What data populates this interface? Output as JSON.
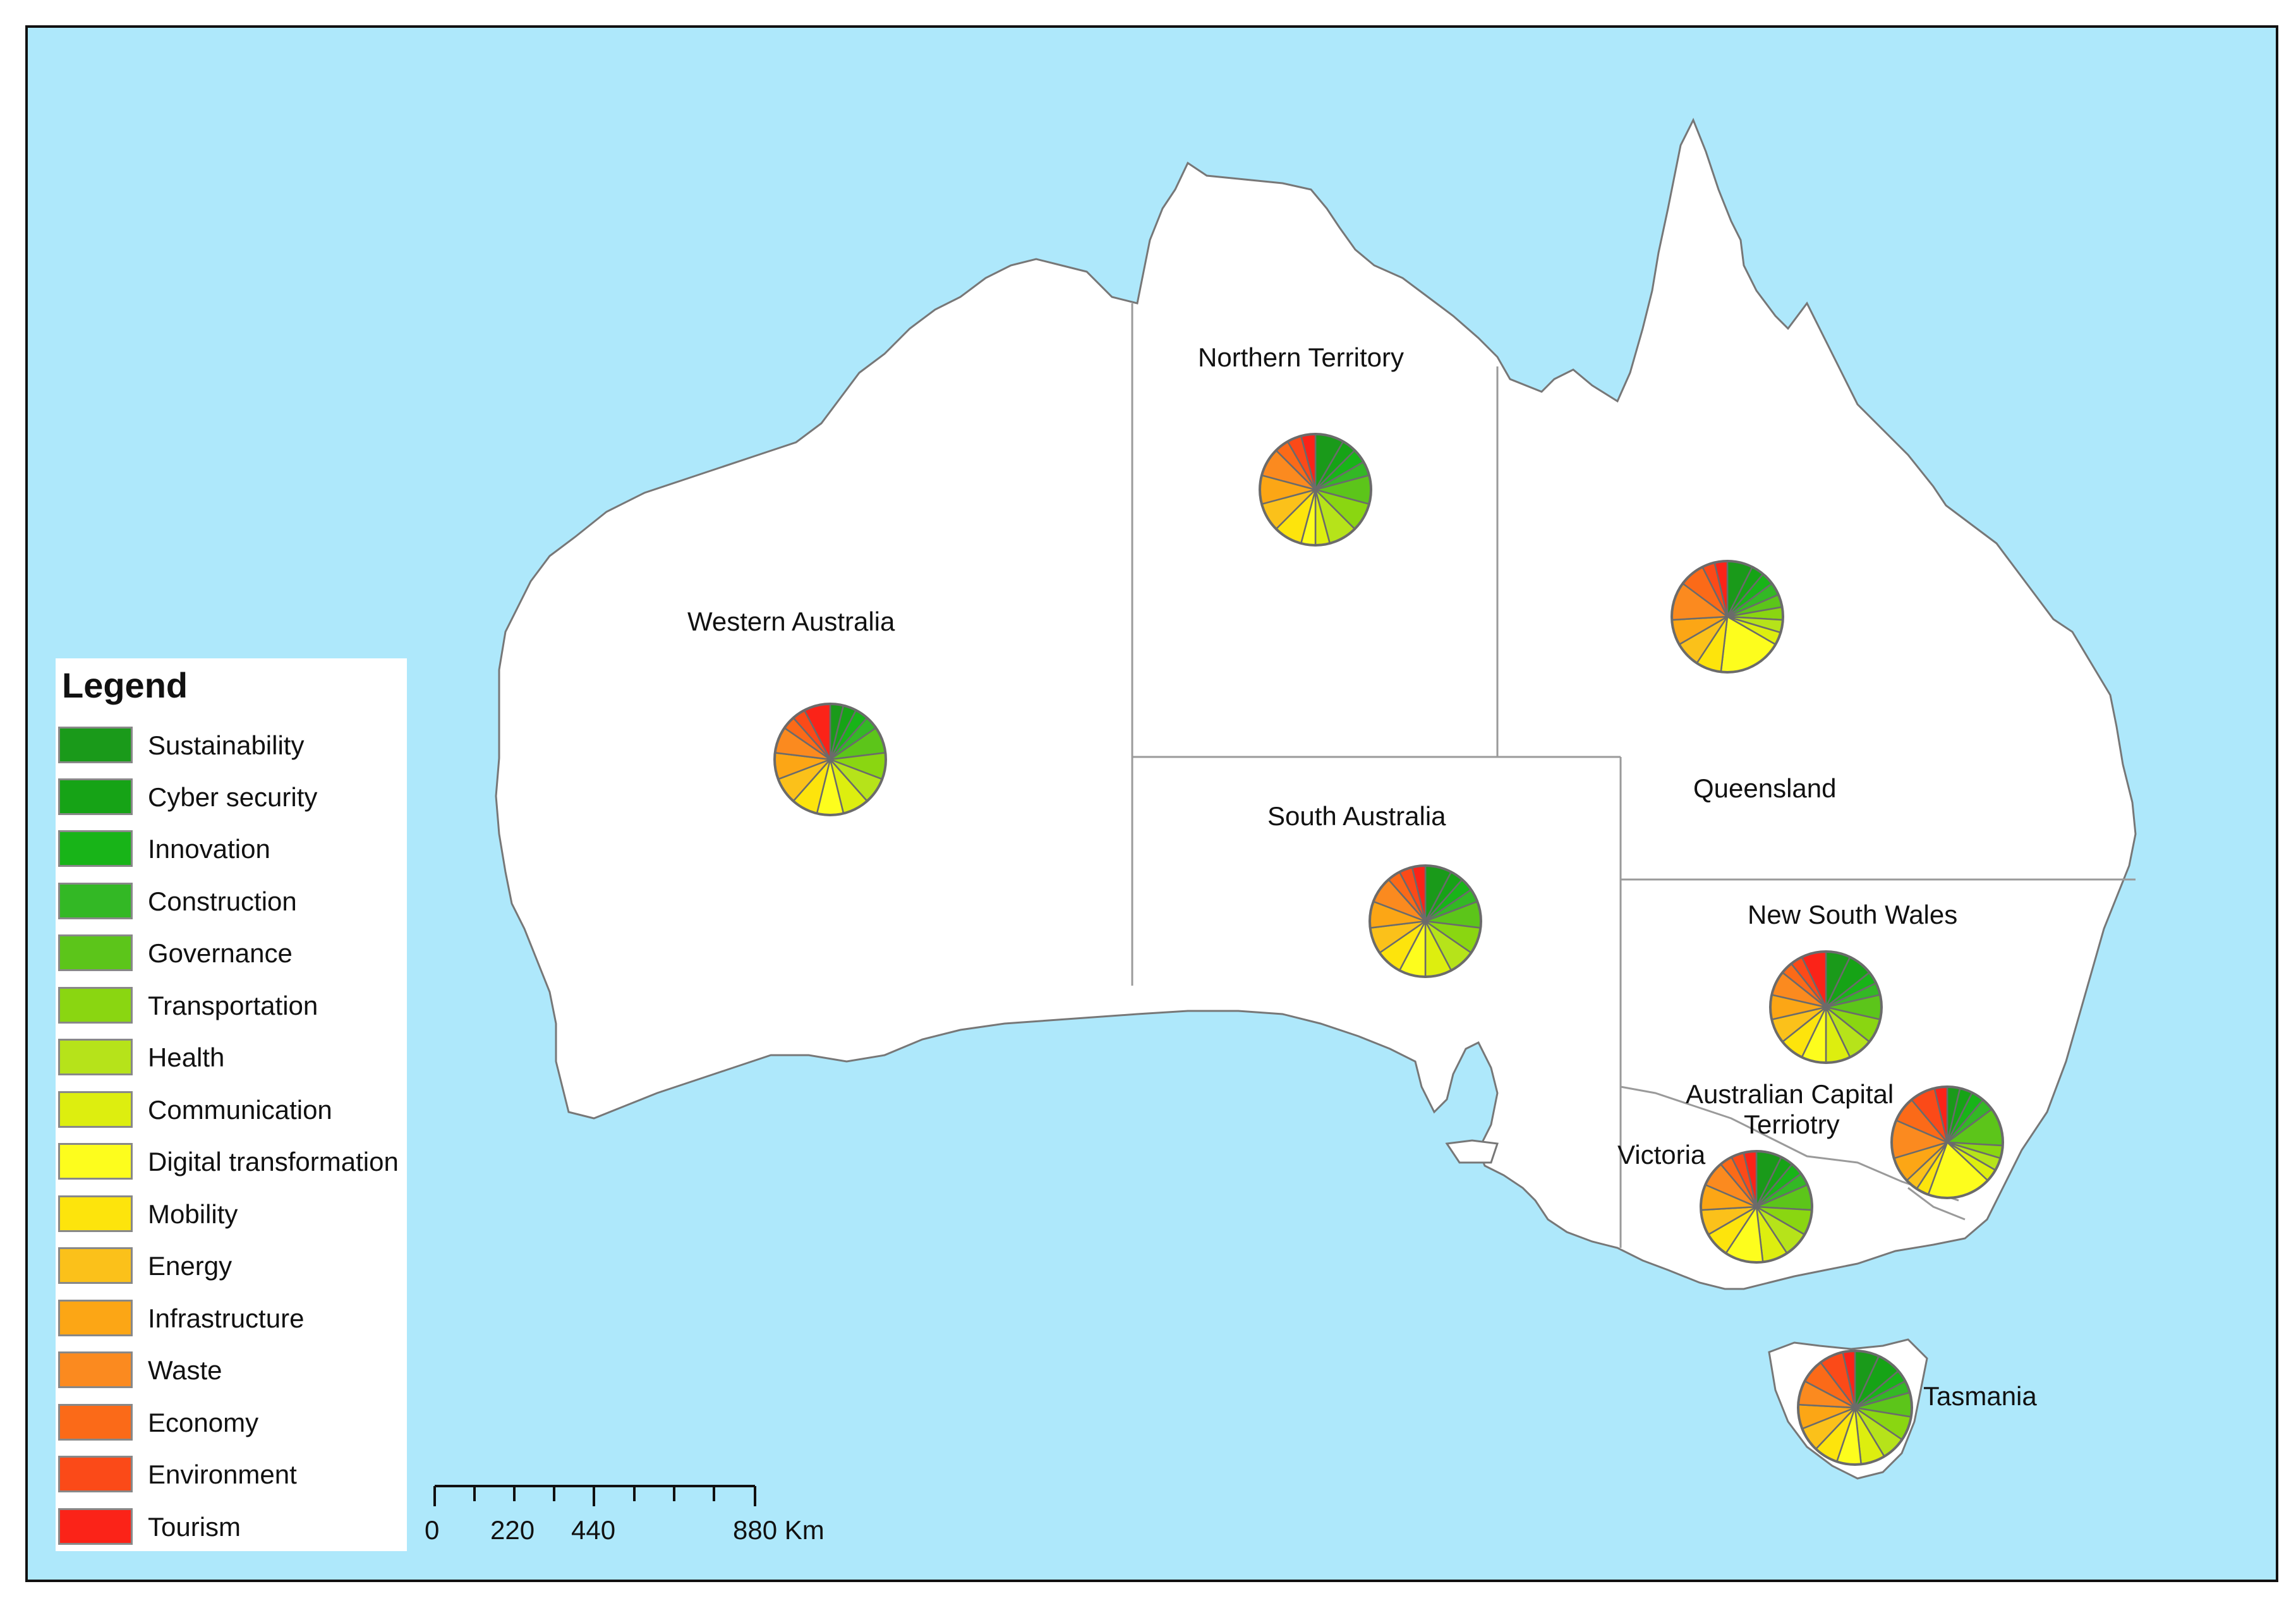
{
  "legend": {
    "title": "Legend",
    "items": [
      {
        "label": "Sustainability",
        "color": "#1a9a1a"
      },
      {
        "label": "Cyber security",
        "color": "#16a316"
      },
      {
        "label": "Innovation",
        "color": "#18b418"
      },
      {
        "label": "Construction",
        "color": "#33b825"
      },
      {
        "label": "Governance",
        "color": "#5cc51a"
      },
      {
        "label": "Transportation",
        "color": "#8ad611"
      },
      {
        "label": "Health",
        "color": "#b6e31a"
      },
      {
        "label": "Communication",
        "color": "#ddee0f"
      },
      {
        "label": "Digital transformation",
        "color": "#fdfd1d"
      },
      {
        "label": "Mobility",
        "color": "#fde40c"
      },
      {
        "label": "Energy",
        "color": "#fbc11a"
      },
      {
        "label": "Infrastructure",
        "color": "#fca615"
      },
      {
        "label": "Waste",
        "color": "#fb8a1f"
      },
      {
        "label": "Economy",
        "color": "#fb6a18"
      },
      {
        "label": "Environment",
        "color": "#fb4a18"
      },
      {
        "label": "Tourism",
        "color": "#fb2318"
      }
    ]
  },
  "regions": [
    {
      "name": "Western Australia"
    },
    {
      "name": "Northern Territory"
    },
    {
      "name": "Queensland"
    },
    {
      "name": "South Australia"
    },
    {
      "name": "New South Wales"
    },
    {
      "name": "Australian Capital"
    },
    {
      "name": "Terriotry"
    },
    {
      "name": "Victoria"
    },
    {
      "name": "Tasmania"
    }
  ],
  "scale_bar": {
    "tick_labels": [
      "0",
      "220",
      "440",
      "880 Km"
    ]
  },
  "colors": {
    "ocean": "#aee8fb",
    "land": "#ffffff",
    "border": "#9a9a9a",
    "coast": "#777777"
  }
}
